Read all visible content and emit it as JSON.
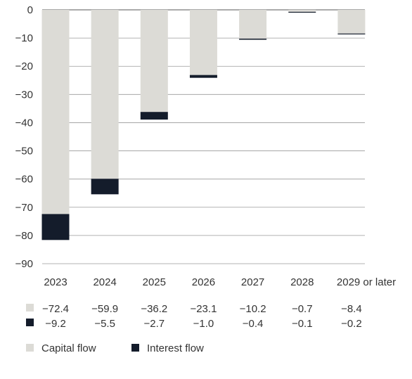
{
  "chart_data": {
    "type": "bar",
    "stacked": true,
    "title": "",
    "xlabel": "",
    "ylabel": "",
    "ylim": [
      -90,
      0
    ],
    "yticks": [
      0,
      -10,
      -20,
      -30,
      -40,
      -50,
      -60,
      -70,
      -80,
      -90
    ],
    "ytick_labels": [
      "0",
      "−10",
      "−20",
      "−30",
      "−40",
      "−50",
      "−60",
      "−70",
      "−80",
      "−90"
    ],
    "grid": true,
    "legend_position": "bottom-left",
    "categories": [
      "2023",
      "2024",
      "2025",
      "2026",
      "2027",
      "2028",
      "2029 or later"
    ],
    "series": [
      {
        "name": "Capital flow",
        "color": "#dcdbd6",
        "values": [
          -72.4,
          -59.9,
          -36.2,
          -23.1,
          -10.2,
          -0.7,
          -8.4
        ],
        "labels": [
          "−72.4",
          "−59.9",
          "−36.2",
          "−23.1",
          "−10.2",
          "−0.7",
          "−8.4"
        ]
      },
      {
        "name": "Interest flow",
        "color": "#141c2b",
        "values": [
          -9.2,
          -5.5,
          -2.7,
          -1.0,
          -0.4,
          -0.1,
          -0.2
        ],
        "labels": [
          "−9.2",
          "−5.5",
          "−2.7",
          "−1.0",
          "−0.4",
          "−0.1",
          "−0.2"
        ]
      }
    ]
  }
}
